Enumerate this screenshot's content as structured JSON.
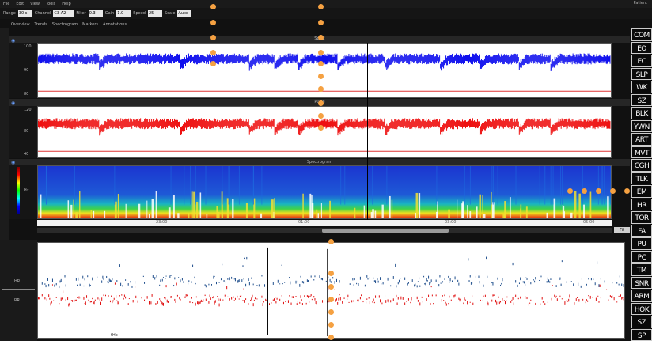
{
  "toolbar": {
    "items": [
      "File",
      "Edit",
      "View",
      "Tools",
      "Help"
    ],
    "row2": {
      "labels": [
        "Range",
        "Channel",
        "Filter",
        "Gain",
        "Speed",
        "Scale"
      ],
      "values": [
        "30 s",
        "C3-A2",
        "0.3",
        "1.0",
        "25",
        "Auto"
      ]
    },
    "row3": {
      "checkboxes": [
        "Overview",
        "Trends",
        "Spectrogram",
        "Markers",
        "Annotations"
      ]
    },
    "right_meta": "Patient"
  },
  "panels": {
    "trend1_title": "SpO2",
    "trend2_title": "Pulse",
    "spectro_title": "Spectrogram",
    "trend1_ymax": "100",
    "trend1_ymid": "90",
    "trend1_ymin": "80",
    "trend2_ymax": "120",
    "trend2_ymid": "80",
    "trend2_ymin": "40",
    "spectro_ylabel": "Hz"
  },
  "timeaxis": {
    "ticks": [
      "23:00",
      "01:00",
      "03:00",
      "05:00"
    ]
  },
  "scroll": {
    "button": "Fit"
  },
  "bottom": {
    "label_top": "HR",
    "label_bottom": "RR",
    "bottom_marker": "tHo"
  },
  "tags": [
    "COM",
    "EO",
    "EC",
    "SLP",
    "WK",
    "SZ",
    "BLK",
    "YWN",
    "ART",
    "MVT",
    "CGH",
    "TLK",
    "EM",
    "HR",
    "TOR",
    "FA",
    "PU",
    "PC",
    "TM",
    "SNR",
    "ARM",
    "HOK",
    "SZ",
    "SP"
  ],
  "colors": {
    "trend1": "#1010ee",
    "trend2": "#ee1010",
    "bottom_blue": "#1f4e8c",
    "bottom_red": "#e01010",
    "dot": "#f5a142"
  }
}
